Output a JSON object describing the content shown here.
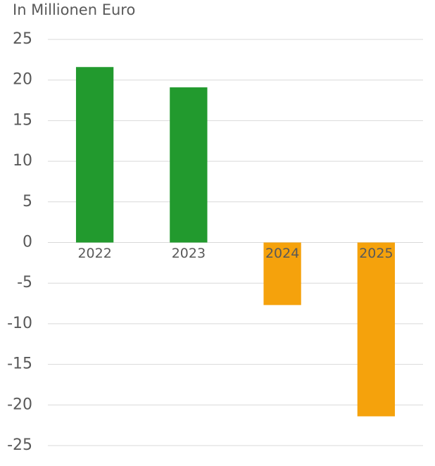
{
  "chart_data": {
    "type": "bar",
    "y_label": "In Millionen Euro",
    "categories": [
      "2022",
      "2023",
      "2024",
      "2025"
    ],
    "values": [
      21.6,
      19.1,
      -7.7,
      -21.4
    ],
    "colors": [
      "#229a2e",
      "#229a2e",
      "#f5a20c",
      "#f5a20c"
    ],
    "ylim": [
      -25,
      25
    ],
    "yticks": [
      -25,
      -20,
      -15,
      -10,
      -5,
      0,
      5,
      10,
      15,
      20,
      25
    ],
    "grid": true
  }
}
